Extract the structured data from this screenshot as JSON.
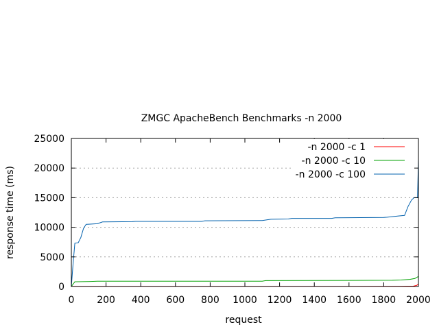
{
  "chart_data": {
    "type": "line",
    "title": "ZMGC ApacheBench Benchmarks -n 2000",
    "xlabel": "request",
    "ylabel": "response time (ms)",
    "xlim": [
      0,
      2000
    ],
    "ylim": [
      0,
      25000
    ],
    "x_ticks": [
      0,
      200,
      400,
      600,
      800,
      1000,
      1200,
      1400,
      1600,
      1800,
      2000
    ],
    "y_ticks": [
      0,
      5000,
      10000,
      15000,
      20000,
      25000
    ],
    "grid": "horizontal dotted",
    "legend_position": "top-right",
    "series": [
      {
        "name": "-n 2000 -c 1",
        "color": "#ff0000",
        "points": [
          [
            0,
            10
          ],
          [
            200,
            12
          ],
          [
            1000,
            15
          ],
          [
            1900,
            20
          ],
          [
            1970,
            60
          ],
          [
            1990,
            200
          ],
          [
            2000,
            400
          ]
        ]
      },
      {
        "name": "-n 2000 -c 10",
        "color": "#00a000",
        "points": [
          [
            0,
            0
          ],
          [
            20,
            800
          ],
          [
            100,
            850
          ],
          [
            150,
            900
          ],
          [
            1100,
            900
          ],
          [
            1120,
            1000
          ],
          [
            1850,
            1050
          ],
          [
            1900,
            1100
          ],
          [
            1950,
            1200
          ],
          [
            1980,
            1350
          ],
          [
            2000,
            1700
          ]
        ]
      },
      {
        "name": "-n 2000 -c 100",
        "color": "#0060ad",
        "points": [
          [
            0,
            0
          ],
          [
            10,
            3800
          ],
          [
            20,
            7300
          ],
          [
            40,
            7400
          ],
          [
            55,
            8300
          ],
          [
            70,
            9800
          ],
          [
            85,
            10500
          ],
          [
            150,
            10600
          ],
          [
            180,
            10900
          ],
          [
            350,
            10950
          ],
          [
            370,
            11000
          ],
          [
            750,
            11000
          ],
          [
            770,
            11100
          ],
          [
            1100,
            11150
          ],
          [
            1150,
            11350
          ],
          [
            1250,
            11400
          ],
          [
            1270,
            11500
          ],
          [
            1500,
            11500
          ],
          [
            1520,
            11600
          ],
          [
            1800,
            11650
          ],
          [
            1820,
            11700
          ],
          [
            1880,
            11900
          ],
          [
            1920,
            12000
          ],
          [
            1940,
            13500
          ],
          [
            1960,
            14600
          ],
          [
            1975,
            15000
          ],
          [
            1995,
            15000
          ],
          [
            2000,
            21500
          ]
        ]
      }
    ]
  }
}
